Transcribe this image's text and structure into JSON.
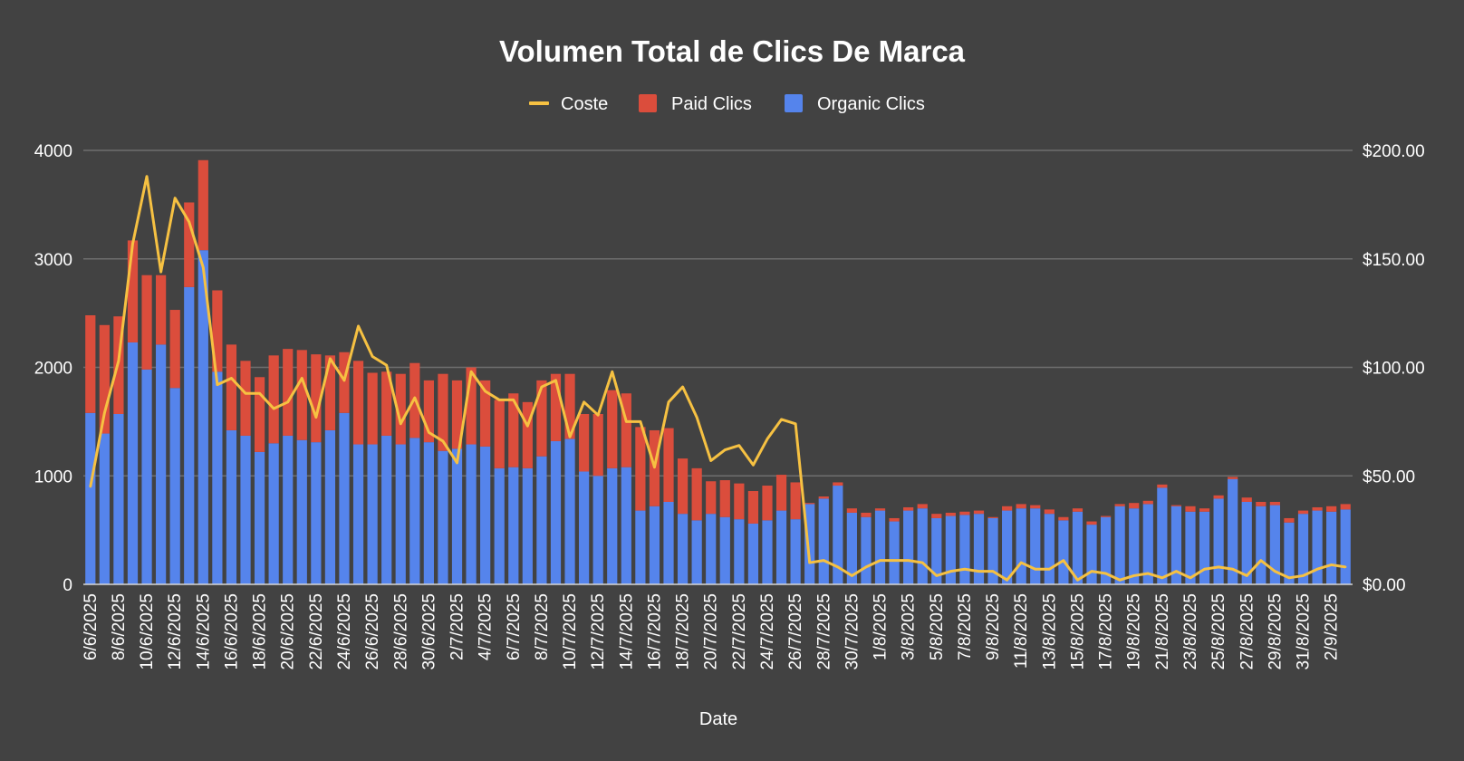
{
  "chart_data": {
    "type": "bar",
    "stacked": true,
    "title": "Volumen Total de Clics De Marca",
    "xlabel": "Date",
    "ylabel_left": "",
    "ylabel_right": "",
    "ylim_left": [
      0,
      4000
    ],
    "ylim_right": [
      0,
      200
    ],
    "y_ticks_left": [
      "0",
      "1000",
      "2000",
      "3000",
      "4000"
    ],
    "y_ticks_right": [
      "$0.00",
      "$50.00",
      "$100.00",
      "$150.00",
      "$200.00"
    ],
    "legend_position": "top",
    "colors": {
      "background": "#424242",
      "coste": "#f6c142",
      "paid": "#db4d3c",
      "organic": "#5584ec"
    },
    "legend": [
      {
        "name": "Coste",
        "kind": "line",
        "color": "#f6c142"
      },
      {
        "name": "Paid Clics",
        "kind": "box",
        "color": "#db4d3c"
      },
      {
        "name": "Organic Clics",
        "kind": "box",
        "color": "#5584ec"
      }
    ],
    "categories": [
      "6/6/2025",
      "7/6/2025",
      "8/6/2025",
      "9/6/2025",
      "10/6/2025",
      "11/6/2025",
      "12/6/2025",
      "13/6/2025",
      "14/6/2025",
      "15/6/2025",
      "16/6/2025",
      "17/6/2025",
      "18/6/2025",
      "19/6/2025",
      "20/6/2025",
      "21/6/2025",
      "22/6/2025",
      "23/6/2025",
      "24/6/2025",
      "25/6/2025",
      "26/6/2025",
      "27/6/2025",
      "28/6/2025",
      "29/6/2025",
      "30/6/2025",
      "1/7/2025",
      "2/7/2025",
      "3/7/2025",
      "4/7/2025",
      "5/7/2025",
      "6/7/2025",
      "7/7/2025",
      "8/7/2025",
      "9/7/2025",
      "10/7/2025",
      "11/7/2025",
      "12/7/2025",
      "13/7/2025",
      "14/7/2025",
      "15/7/2025",
      "16/7/2025",
      "17/7/2025",
      "18/7/2025",
      "19/7/2025",
      "20/7/2025",
      "21/7/2025",
      "22/7/2025",
      "23/7/2025",
      "24/7/2025",
      "25/7/2025",
      "26/7/2025",
      "27/7/2025",
      "28/7/2025",
      "29/7/2025",
      "30/7/2025",
      "31/7/2025",
      "1/8/2025",
      "2/8/2025",
      "3/8/2025",
      "4/8/2025",
      "5/8/2025",
      "6/8/2025",
      "7/8/2025",
      "8/8/2025",
      "9/8/2025",
      "10/8/2025",
      "11/8/2025",
      "12/8/2025",
      "13/8/2025",
      "14/8/2025",
      "15/8/2025",
      "16/8/2025",
      "17/8/2025",
      "18/8/2025",
      "19/8/2025",
      "20/8/2025",
      "21/8/2025",
      "22/8/2025",
      "23/8/2025",
      "24/8/2025",
      "25/8/2025",
      "26/8/2025",
      "27/8/2025",
      "28/8/2025",
      "29/8/2025",
      "30/8/2025",
      "31/8/2025",
      "1/9/2025",
      "2/9/2025",
      "3/9/2025"
    ],
    "x_tick_labels": [
      "6/6/2025",
      "8/6/2025",
      "10/6/2025",
      "12/6/2025",
      "14/6/2025",
      "16/6/2025",
      "18/6/2025",
      "20/6/2025",
      "22/6/2025",
      "24/6/2025",
      "26/6/2025",
      "28/6/2025",
      "30/6/2025",
      "2/7/2025",
      "4/7/2025",
      "6/7/2025",
      "8/7/2025",
      "10/7/2025",
      "12/7/2025",
      "14/7/2025",
      "16/7/2025",
      "18/7/2025",
      "20/7/2025",
      "22/7/2025",
      "24/7/2025",
      "26/7/2025",
      "28/7/2025",
      "30/7/2025",
      "1/8/2025",
      "3/8/2025",
      "5/8/2025",
      "7/8/2025",
      "9/8/2025",
      "11/8/2025",
      "13/8/2025",
      "15/8/2025",
      "17/8/2025",
      "19/8/2025",
      "21/8/2025",
      "23/8/2025",
      "25/8/2025",
      "27/8/2025",
      "29/8/2025",
      "31/8/2025",
      "2/9/2025"
    ],
    "series": [
      {
        "name": "Organic Clics",
        "axis": "left",
        "values": [
          1580,
          1390,
          1570,
          2230,
          1980,
          2210,
          1810,
          2740,
          3080,
          1960,
          1420,
          1370,
          1220,
          1300,
          1370,
          1330,
          1310,
          1420,
          1580,
          1290,
          1290,
          1370,
          1290,
          1350,
          1310,
          1230,
          1250,
          1290,
          1270,
          1070,
          1080,
          1070,
          1180,
          1320,
          1340,
          1040,
          1000,
          1070,
          1080,
          680,
          720,
          760,
          650,
          590,
          650,
          620,
          600,
          560,
          590,
          680,
          600,
          740,
          790,
          910,
          660,
          620,
          680,
          580,
          680,
          700,
          610,
          630,
          640,
          650,
          610,
          680,
          700,
          700,
          650,
          590,
          670,
          550,
          620,
          720,
          700,
          740,
          890,
          720,
          670,
          670,
          790,
          970,
          760,
          720,
          730,
          570,
          650,
          680,
          670,
          690
        ]
      },
      {
        "name": "Paid Clics",
        "axis": "left",
        "values": [
          900,
          1000,
          900,
          940,
          870,
          640,
          720,
          780,
          830,
          750,
          790,
          690,
          690,
          810,
          800,
          830,
          810,
          690,
          560,
          770,
          660,
          590,
          650,
          690,
          570,
          710,
          630,
          710,
          610,
          630,
          680,
          610,
          700,
          620,
          600,
          530,
          570,
          720,
          680,
          770,
          700,
          680,
          510,
          480,
          300,
          340,
          330,
          300,
          320,
          330,
          340,
          10,
          20,
          30,
          40,
          40,
          20,
          30,
          30,
          40,
          40,
          30,
          30,
          30,
          10,
          40,
          40,
          30,
          40,
          30,
          30,
          30,
          10,
          20,
          50,
          30,
          30,
          10,
          50,
          30,
          30,
          20,
          40,
          40,
          30,
          40,
          30,
          30,
          50,
          50
        ]
      },
      {
        "name": "Coste",
        "axis": "right",
        "type": "line",
        "values": [
          45,
          79,
          103,
          157,
          188,
          144,
          178,
          167,
          146,
          92,
          95,
          88,
          88,
          81,
          84,
          95,
          77,
          104,
          94,
          119,
          105,
          101,
          74,
          86,
          70,
          66,
          56,
          98,
          89,
          85,
          85,
          73,
          91,
          94,
          68,
          84,
          78,
          98,
          75,
          75,
          54,
          84,
          91,
          77,
          57,
          62,
          64,
          55,
          67,
          76,
          74,
          10,
          11,
          8,
          4,
          8,
          11,
          11,
          11,
          10,
          4,
          6,
          7,
          6,
          6,
          2,
          10,
          7,
          7,
          11,
          2,
          6,
          5,
          2,
          4,
          5,
          3,
          6,
          3,
          7,
          8,
          7,
          4,
          11,
          6,
          3,
          4,
          7,
          9,
          8
        ]
      }
    ]
  }
}
